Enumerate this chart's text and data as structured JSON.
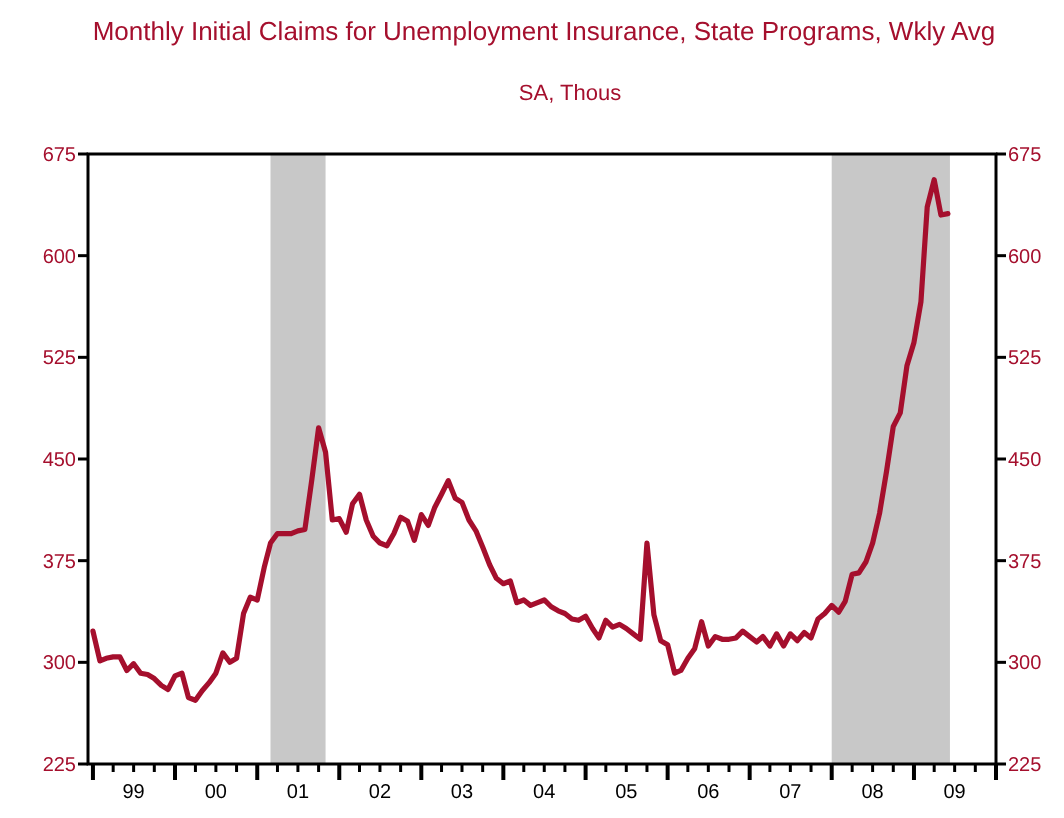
{
  "chart_data": {
    "type": "line",
    "title": "Monthly Initial Claims for Unemployment Insurance, State Programs, Wkly Avg",
    "subtitle": "SA, Thous",
    "x": [
      "1999-01",
      "1999-02",
      "1999-03",
      "1999-04",
      "1999-05",
      "1999-06",
      "1999-07",
      "1999-08",
      "1999-09",
      "1999-10",
      "1999-11",
      "1999-12",
      "2000-01",
      "2000-02",
      "2000-03",
      "2000-04",
      "2000-05",
      "2000-06",
      "2000-07",
      "2000-08",
      "2000-09",
      "2000-10",
      "2000-11",
      "2000-12",
      "2001-01",
      "2001-02",
      "2001-03",
      "2001-04",
      "2001-05",
      "2001-06",
      "2001-07",
      "2001-08",
      "2001-09",
      "2001-10",
      "2001-11",
      "2001-12",
      "2002-01",
      "2002-02",
      "2002-03",
      "2002-04",
      "2002-05",
      "2002-06",
      "2002-07",
      "2002-08",
      "2002-09",
      "2002-10",
      "2002-11",
      "2002-12",
      "2003-01",
      "2003-02",
      "2003-03",
      "2003-04",
      "2003-05",
      "2003-06",
      "2003-07",
      "2003-08",
      "2003-09",
      "2003-10",
      "2003-11",
      "2003-12",
      "2004-01",
      "2004-02",
      "2004-03",
      "2004-04",
      "2004-05",
      "2004-06",
      "2004-07",
      "2004-08",
      "2004-09",
      "2004-10",
      "2004-11",
      "2004-12",
      "2005-01",
      "2005-02",
      "2005-03",
      "2005-04",
      "2005-05",
      "2005-06",
      "2005-07",
      "2005-08",
      "2005-09",
      "2005-10",
      "2005-11",
      "2005-12",
      "2006-01",
      "2006-02",
      "2006-03",
      "2006-04",
      "2006-05",
      "2006-06",
      "2006-07",
      "2006-08",
      "2006-09",
      "2006-10",
      "2006-11",
      "2006-12",
      "2007-01",
      "2007-02",
      "2007-03",
      "2007-04",
      "2007-05",
      "2007-06",
      "2007-07",
      "2007-08",
      "2007-09",
      "2007-10",
      "2007-11",
      "2007-12",
      "2008-01",
      "2008-02",
      "2008-03",
      "2008-04",
      "2008-05",
      "2008-06",
      "2008-07",
      "2008-08",
      "2008-09",
      "2008-10",
      "2008-11",
      "2008-12",
      "2009-01",
      "2009-02",
      "2009-03",
      "2009-04",
      "2009-05",
      "2009-06"
    ],
    "series": [
      {
        "color": "#a50f2d",
        "values": [
          323,
          301,
          303,
          304,
          304,
          294,
          299,
          292,
          291,
          288,
          283,
          280,
          290,
          292,
          274,
          272,
          279,
          285,
          292,
          307,
          300,
          303,
          336,
          348,
          346,
          370,
          388,
          395,
          395,
          395,
          397,
          398,
          435,
          473,
          455,
          405,
          406,
          396,
          417,
          424,
          405,
          393,
          388,
          386,
          395,
          407,
          404,
          390,
          409,
          401,
          414,
          424,
          434,
          421,
          418,
          405,
          397,
          385,
          372,
          362,
          358,
          360,
          344,
          346,
          342,
          344,
          346,
          341,
          338,
          336,
          332,
          331,
          334,
          325,
          318,
          331,
          326,
          328,
          325,
          321,
          317,
          388,
          335,
          316,
          313,
          292,
          294,
          303,
          310,
          330,
          312,
          319,
          317,
          317,
          318,
          323,
          319,
          315,
          319,
          312,
          321,
          312,
          321,
          316,
          322,
          318,
          332,
          336,
          342,
          337,
          345,
          365,
          366,
          374,
          388,
          410,
          441,
          474,
          484,
          519,
          536,
          566,
          636,
          656,
          630,
          631
        ]
      }
    ],
    "xlim": [
      "1998-12-10",
      "2010-01-01"
    ],
    "xticks": [
      {
        "value": "1999-01-01",
        "label": null
      },
      {
        "value": "1999-04-01",
        "label": null
      },
      {
        "value": "1999-07-01",
        "label": "99"
      },
      {
        "value": "1999-10-01",
        "label": null
      },
      {
        "value": "2000-01-01",
        "label": null
      },
      {
        "value": "2000-04-01",
        "label": null
      },
      {
        "value": "2000-07-01",
        "label": "00"
      },
      {
        "value": "2000-10-01",
        "label": null
      },
      {
        "value": "2001-01-01",
        "label": null
      },
      {
        "value": "2001-04-01",
        "label": null
      },
      {
        "value": "2001-07-01",
        "label": "01"
      },
      {
        "value": "2001-10-01",
        "label": null
      },
      {
        "value": "2002-01-01",
        "label": null
      },
      {
        "value": "2002-04-01",
        "label": null
      },
      {
        "value": "2002-07-01",
        "label": "02"
      },
      {
        "value": "2002-10-01",
        "label": null
      },
      {
        "value": "2003-01-01",
        "label": null
      },
      {
        "value": "2003-04-01",
        "label": null
      },
      {
        "value": "2003-07-01",
        "label": "03"
      },
      {
        "value": "2003-10-01",
        "label": null
      },
      {
        "value": "2004-01-01",
        "label": null
      },
      {
        "value": "2004-04-01",
        "label": null
      },
      {
        "value": "2004-07-01",
        "label": "04"
      },
      {
        "value": "2004-10-01",
        "label": null
      },
      {
        "value": "2005-01-01",
        "label": null
      },
      {
        "value": "2005-04-01",
        "label": null
      },
      {
        "value": "2005-07-01",
        "label": "05"
      },
      {
        "value": "2005-10-01",
        "label": null
      },
      {
        "value": "2006-01-01",
        "label": null
      },
      {
        "value": "2006-04-01",
        "label": null
      },
      {
        "value": "2006-07-01",
        "label": "06"
      },
      {
        "value": "2006-10-01",
        "label": null
      },
      {
        "value": "2007-01-01",
        "label": null
      },
      {
        "value": "2007-04-01",
        "label": null
      },
      {
        "value": "2007-07-01",
        "label": "07"
      },
      {
        "value": "2007-10-01",
        "label": null
      },
      {
        "value": "2008-01-01",
        "label": null
      },
      {
        "value": "2008-04-01",
        "label": null
      },
      {
        "value": "2008-07-01",
        "label": "08"
      },
      {
        "value": "2008-10-01",
        "label": null
      },
      {
        "value": "2009-01-01",
        "label": null
      },
      {
        "value": "2009-04-01",
        "label": null
      },
      {
        "value": "2009-07-01",
        "label": "09"
      },
      {
        "value": "2009-10-01",
        "label": null
      },
      {
        "value": "2010-01-01",
        "label": null
      }
    ],
    "ylim": [
      225,
      675
    ],
    "yticks": [
      225,
      300,
      375,
      450,
      525,
      600,
      675
    ],
    "y2lim": [
      225,
      675
    ],
    "y2ticks": [
      225,
      300,
      375,
      450,
      525,
      600,
      675
    ],
    "bands": [
      {
        "axis": "x",
        "from": "2001-03-01",
        "to": "2001-11-01",
        "color": "#c8c8c8"
      },
      {
        "axis": "x",
        "from": "2008-01-01",
        "to": "2009-06-10",
        "color": "#c8c8c8"
      }
    ],
    "grid": false,
    "line_style": "solid",
    "marker": "none"
  }
}
